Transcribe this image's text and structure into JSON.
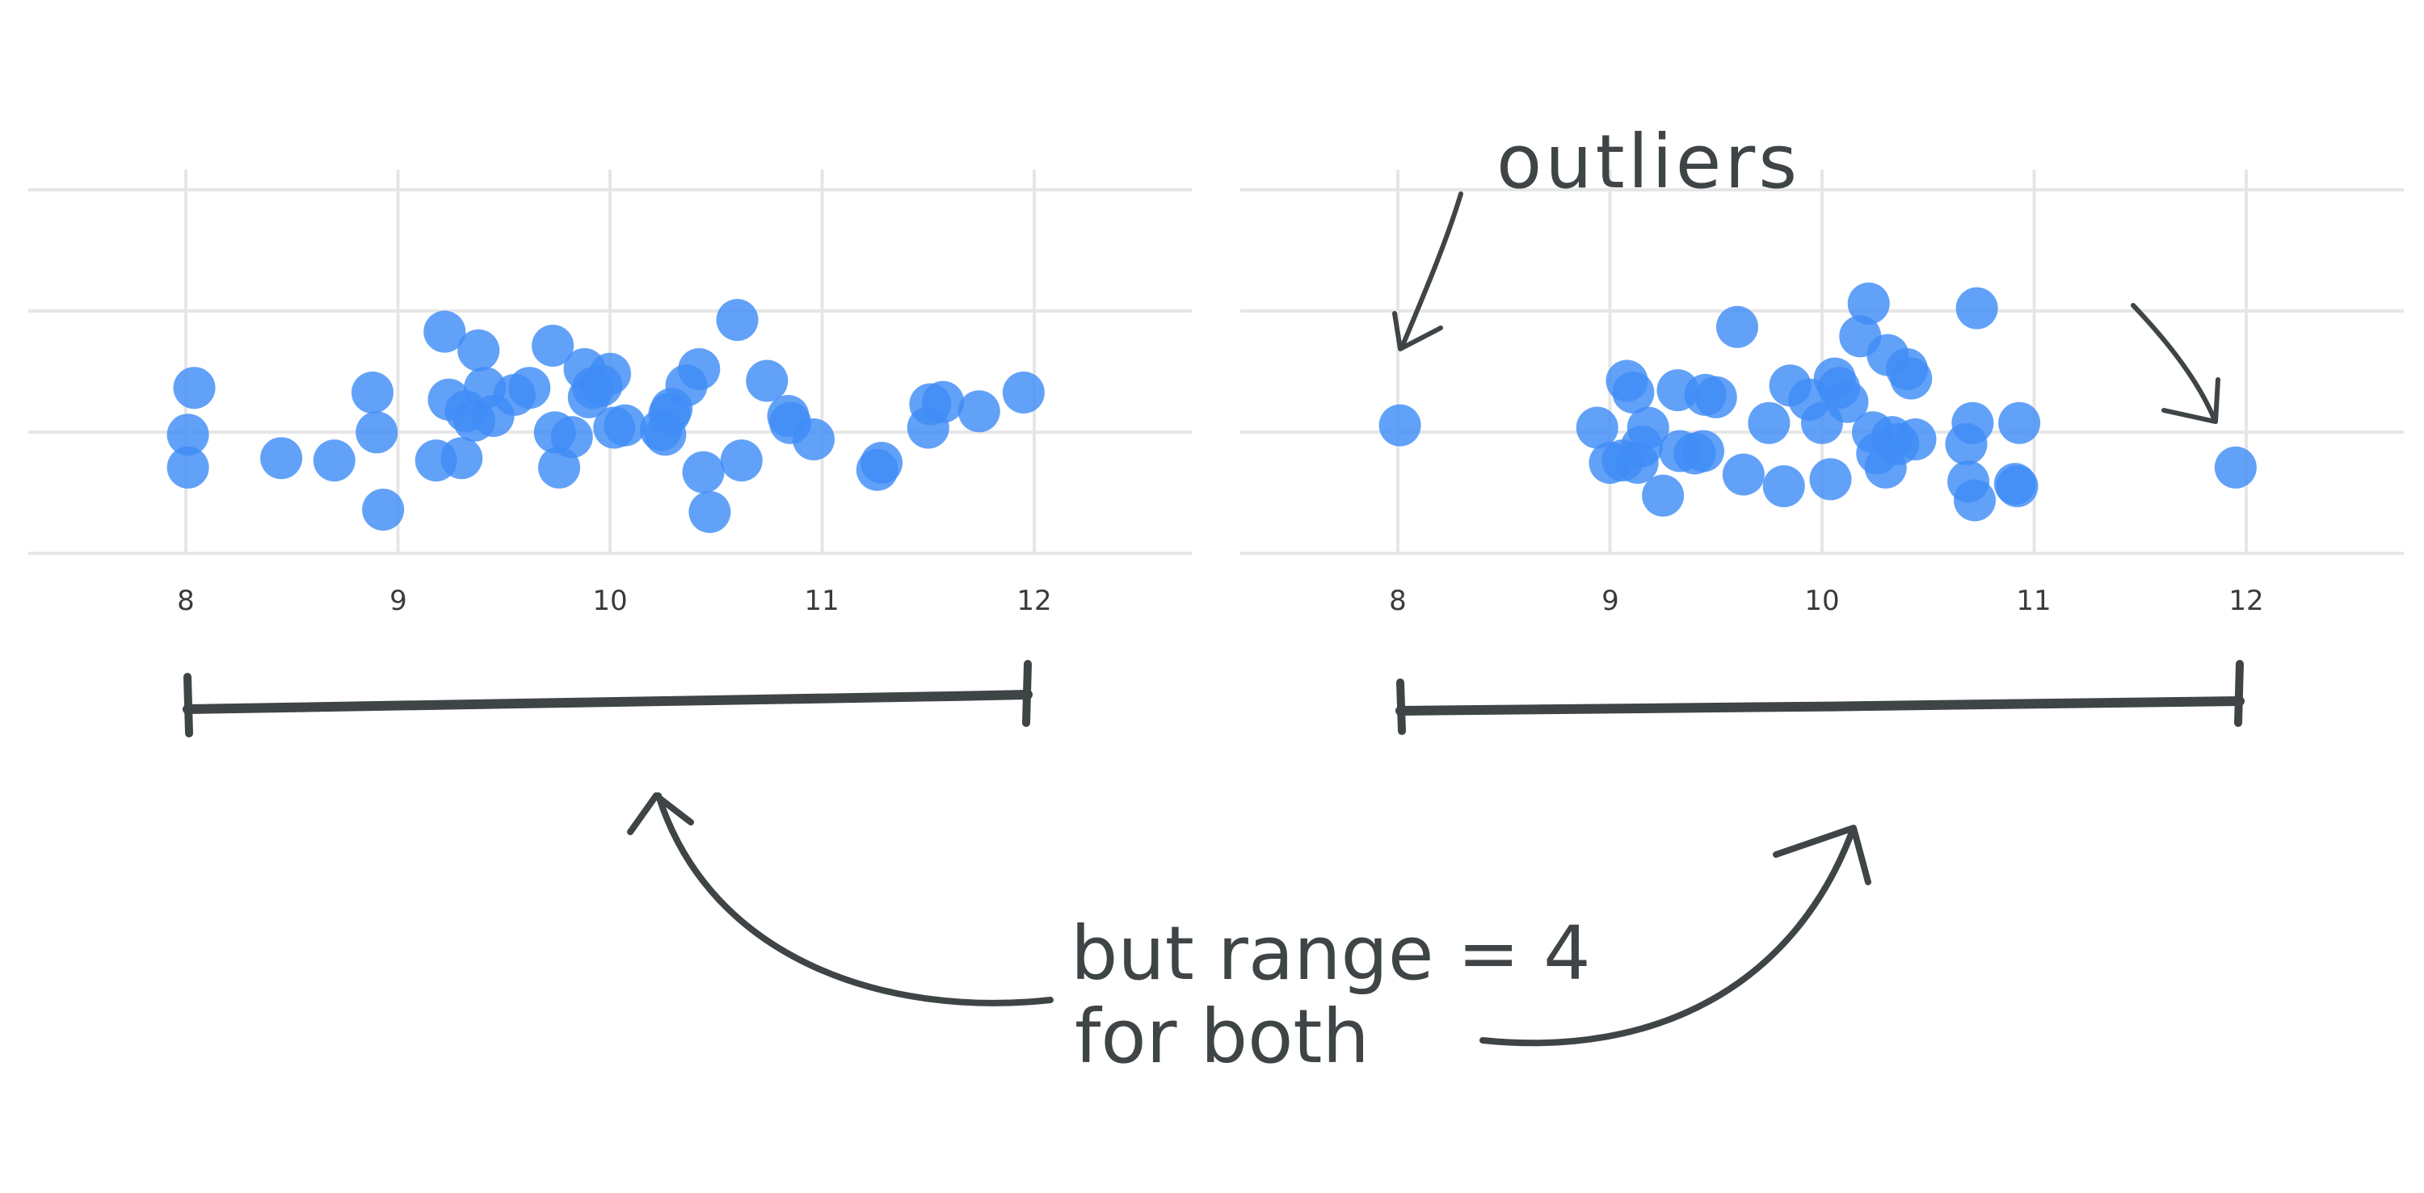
{
  "chart_data": [
    {
      "type": "scatter",
      "xlim": [
        7.25,
        12.75
      ],
      "x_ticks": [
        "8",
        "9",
        "10",
        "11",
        "12"
      ],
      "grid": true,
      "points": [
        [
          8.04,
          0.62
        ],
        [
          8.01,
          0.42
        ],
        [
          8.01,
          0.28
        ],
        [
          8.45,
          0.32
        ],
        [
          8.7,
          0.31
        ],
        [
          8.88,
          0.6
        ],
        [
          8.9,
          0.43
        ],
        [
          8.93,
          0.1
        ],
        [
          9.18,
          0.31
        ],
        [
          9.22,
          0.86
        ],
        [
          9.24,
          0.57
        ],
        [
          9.3,
          0.32
        ],
        [
          9.32,
          0.52
        ],
        [
          9.36,
          0.48
        ],
        [
          9.38,
          0.78
        ],
        [
          9.41,
          0.62
        ],
        [
          9.45,
          0.5
        ],
        [
          9.55,
          0.59
        ],
        [
          9.62,
          0.62
        ],
        [
          9.73,
          0.8
        ],
        [
          9.74,
          0.43
        ],
        [
          9.76,
          0.28
        ],
        [
          9.82,
          0.41
        ],
        [
          9.88,
          0.7
        ],
        [
          9.9,
          0.58
        ],
        [
          9.92,
          0.62
        ],
        [
          9.96,
          0.63
        ],
        [
          10.0,
          0.68
        ],
        [
          10.02,
          0.45
        ],
        [
          10.07,
          0.46
        ],
        [
          10.24,
          0.44
        ],
        [
          10.26,
          0.42
        ],
        [
          10.28,
          0.51
        ],
        [
          10.29,
          0.53
        ],
        [
          10.36,
          0.63
        ],
        [
          10.42,
          0.7
        ],
        [
          10.44,
          0.26
        ],
        [
          10.47,
          0.09
        ],
        [
          10.6,
          0.91
        ],
        [
          10.62,
          0.31
        ],
        [
          10.74,
          0.65
        ],
        [
          10.84,
          0.5
        ],
        [
          10.85,
          0.47
        ],
        [
          10.96,
          0.4
        ],
        [
          11.26,
          0.27
        ],
        [
          11.28,
          0.3
        ],
        [
          11.5,
          0.45
        ],
        [
          11.51,
          0.55
        ],
        [
          11.57,
          0.56
        ],
        [
          11.74,
          0.52
        ],
        [
          11.95,
          0.6
        ]
      ]
    },
    {
      "type": "scatter",
      "xlim": [
        7.25,
        12.75
      ],
      "x_ticks": [
        "8",
        "9",
        "10",
        "11",
        "12"
      ],
      "grid": true,
      "points": [
        [
          8.01,
          0.46
        ],
        [
          8.94,
          0.45
        ],
        [
          9.0,
          0.3
        ],
        [
          9.06,
          0.31
        ],
        [
          9.08,
          0.65
        ],
        [
          9.11,
          0.6
        ],
        [
          9.13,
          0.3
        ],
        [
          9.15,
          0.37
        ],
        [
          9.18,
          0.45
        ],
        [
          9.25,
          0.16
        ],
        [
          9.32,
          0.61
        ],
        [
          9.33,
          0.35
        ],
        [
          9.4,
          0.34
        ],
        [
          9.44,
          0.35
        ],
        [
          9.45,
          0.59
        ],
        [
          9.5,
          0.58
        ],
        [
          9.63,
          0.25
        ],
        [
          9.6,
          0.88
        ],
        [
          9.75,
          0.47
        ],
        [
          9.82,
          0.2
        ],
        [
          9.85,
          0.63
        ],
        [
          9.94,
          0.57
        ],
        [
          10.0,
          0.47
        ],
        [
          10.04,
          0.23
        ],
        [
          10.06,
          0.66
        ],
        [
          10.08,
          0.62
        ],
        [
          10.12,
          0.56
        ],
        [
          10.18,
          0.84
        ],
        [
          10.22,
          0.98
        ],
        [
          10.24,
          0.43
        ],
        [
          10.26,
          0.34
        ],
        [
          10.3,
          0.28
        ],
        [
          10.31,
          0.76
        ],
        [
          10.33,
          0.41
        ],
        [
          10.36,
          0.38
        ],
        [
          10.4,
          0.7
        ],
        [
          10.42,
          0.66
        ],
        [
          10.44,
          0.4
        ],
        [
          10.68,
          0.38
        ],
        [
          10.69,
          0.22
        ],
        [
          10.71,
          0.47
        ],
        [
          10.72,
          0.14
        ],
        [
          10.73,
          0.96
        ],
        [
          10.91,
          0.21
        ],
        [
          10.92,
          0.2
        ],
        [
          10.93,
          0.47
        ],
        [
          11.95,
          0.28
        ]
      ]
    }
  ],
  "annotations": {
    "outliers": "outliers",
    "range_line1": "but range = 4",
    "range_line2": "for both"
  },
  "colors": {
    "dot": "#3f8cf6",
    "ink": "#3f4446",
    "grid": "#e6e6e6"
  }
}
